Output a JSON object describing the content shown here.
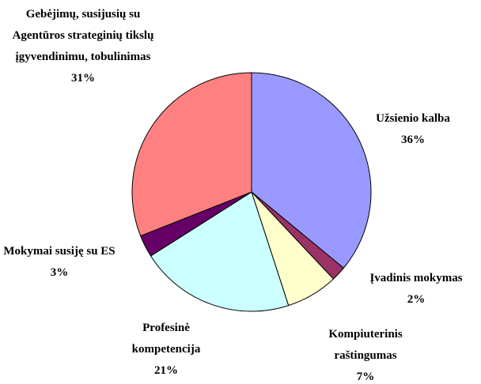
{
  "chart_data": {
    "type": "pie",
    "categories": [
      "Užsienio kalba",
      "Įvadinis mokymas",
      "Kompiuterinis raštingumas",
      "Profesinė kompetencija",
      "Mokymai susiję su ES",
      "Gebėjimų, susijusių su Agentūros strateginių tikslų įgyvendinimu, tobulinimas"
    ],
    "values": [
      36,
      2,
      7,
      21,
      3,
      31
    ],
    "value_labels": [
      "36%",
      "2%",
      "7%",
      "21%",
      "3%",
      "31%"
    ],
    "colors": [
      "#9999ff",
      "#993366",
      "#ffffcc",
      "#ccffff",
      "#660066",
      "#ff8080"
    ]
  }
}
